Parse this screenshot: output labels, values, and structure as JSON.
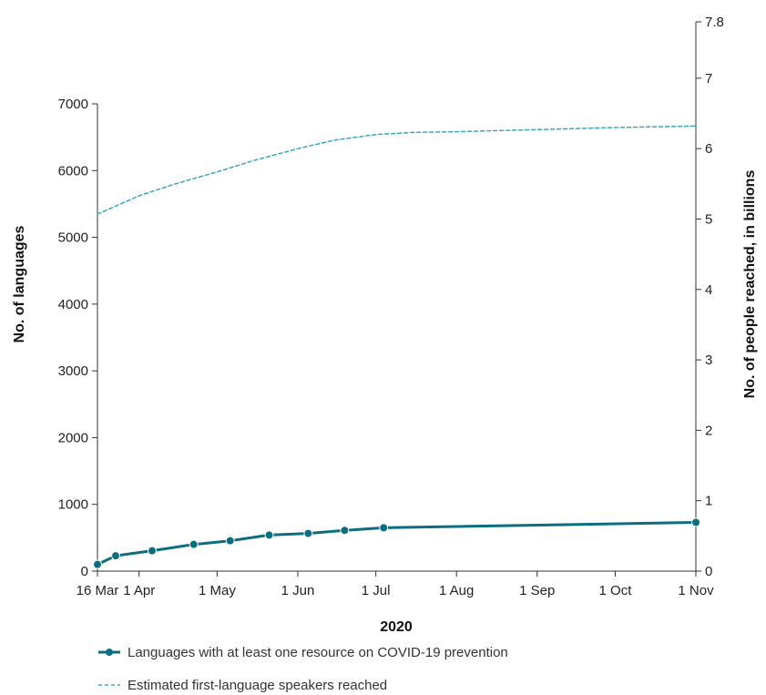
{
  "chart_data": {
    "type": "line",
    "xlabel": "2020",
    "ylabel_left": "No. of languages",
    "ylabel_right": "No. of people reached, in billions",
    "x_ticks": [
      "16 Mar",
      "1 Apr",
      "1 May",
      "1 Jun",
      "1 Jul",
      "1 Aug",
      "1 Sep",
      "1 Oct",
      "1 Nov"
    ],
    "x_tick_dates": [
      "2020-03-16",
      "2020-04-01",
      "2020-05-01",
      "2020-06-01",
      "2020-07-01",
      "2020-08-01",
      "2020-09-01",
      "2020-10-01",
      "2020-11-01"
    ],
    "xlim": [
      "2020-03-16",
      "2020-11-01"
    ],
    "y_left_ticks": [
      "0",
      "1000",
      "2000",
      "3000",
      "4000",
      "5000",
      "6000",
      "7000"
    ],
    "ylim_left": [
      0,
      7000
    ],
    "y_right_ticks": [
      "0",
      "1",
      "2",
      "3",
      "4",
      "5",
      "6",
      "7",
      "7.8"
    ],
    "y_right_tick_values": [
      0,
      1,
      2,
      3,
      4,
      5,
      6,
      7,
      7.8
    ],
    "ylim_right": [
      0,
      7.8
    ],
    "grid": false,
    "legend_position": "bottom",
    "series": [
      {
        "name": "Languages with at least one resource on COVID-19 prevention",
        "axis": "left",
        "style": "solid-markers",
        "color": "#0b6e80",
        "x": [
          "2020-03-16",
          "2020-03-23",
          "2020-04-06",
          "2020-04-22",
          "2020-05-06",
          "2020-05-21",
          "2020-06-05",
          "2020-06-19",
          "2020-07-04",
          "2020-11-01"
        ],
        "values": [
          100,
          230,
          305,
          400,
          455,
          540,
          565,
          610,
          650,
          730
        ]
      },
      {
        "name": "Estimated first-language speakers reached",
        "axis": "right",
        "style": "dashed",
        "color": "#3aa8b8",
        "x": [
          "2020-03-16",
          "2020-04-01",
          "2020-04-15",
          "2020-05-01",
          "2020-05-15",
          "2020-06-01",
          "2020-06-15",
          "2020-07-01",
          "2020-07-15",
          "2020-08-01",
          "2020-09-01",
          "2020-10-01",
          "2020-11-01"
        ],
        "values": [
          5.07,
          5.33,
          5.5,
          5.67,
          5.83,
          6.0,
          6.12,
          6.2,
          6.23,
          6.24,
          6.27,
          6.3,
          6.32
        ]
      }
    ]
  }
}
